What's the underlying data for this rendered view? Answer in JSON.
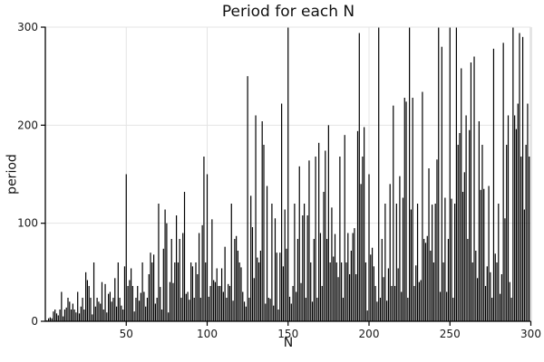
{
  "title": "Period for each N",
  "colors": {
    "bar": "#000000",
    "grid": "#e4e4e4",
    "spine": "#000000",
    "spine_light": "#e4e4e4",
    "text": "#191919",
    "background": "#ffffff"
  },
  "chart_data": {
    "type": "bar",
    "title": "Period for each N",
    "xlabel": "N",
    "ylabel": "period",
    "xlim": [
      0,
      300
    ],
    "ylim": [
      0,
      300
    ],
    "xticks": [
      50,
      100,
      150,
      200,
      250,
      300
    ],
    "yticks": [
      0,
      100,
      200,
      300
    ],
    "x_start": 1,
    "clip_at_ylim": true,
    "values": [
      1,
      3,
      4,
      3,
      10,
      12,
      8,
      6,
      12,
      30,
      5,
      12,
      14,
      24,
      20,
      12,
      18,
      12,
      9,
      30,
      8,
      15,
      24,
      12,
      50,
      42,
      36,
      24,
      7,
      60,
      15,
      24,
      20,
      18,
      40,
      12,
      38,
      9,
      28,
      30,
      20,
      24,
      44,
      15,
      60,
      24,
      16,
      12,
      56,
      150,
      36,
      42,
      54,
      36,
      10,
      24,
      36,
      21,
      29,
      60,
      30,
      15,
      24,
      48,
      70,
      60,
      68,
      18,
      24,
      120,
      35,
      12,
      74,
      114,
      100,
      9,
      40,
      84,
      39,
      60,
      108,
      60,
      84,
      24,
      90,
      132,
      28,
      30,
      22,
      60,
      56,
      24,
      60,
      48,
      90,
      24,
      98,
      168,
      60,
      150,
      25,
      36,
      104,
      42,
      40,
      54,
      36,
      36,
      54,
      30,
      76,
      24,
      38,
      36,
      120,
      21,
      84,
      87,
      72,
      60,
      55,
      30,
      20,
      15,
      250,
      24,
      128,
      96,
      44,
      210,
      65,
      60,
      72,
      204,
      180,
      18,
      138,
      24,
      23,
      120,
      16,
      105,
      70,
      12,
      70,
      222,
      56,
      114,
      74,
      300,
      25,
      18,
      36,
      120,
      30,
      84,
      158,
      39,
      108,
      120,
      24,
      108,
      164,
      60,
      20,
      84,
      168,
      24,
      182,
      90,
      36,
      132,
      174,
      84,
      200,
      60,
      116,
      66,
      89,
      60,
      45,
      168,
      60,
      24,
      190,
      60,
      90,
      48,
      72,
      90,
      95,
      48,
      194,
      294,
      140,
      168,
      198,
      60,
      11,
      150,
      68,
      75,
      56,
      36,
      20,
      312,
      24,
      84,
      45,
      120,
      21,
      54,
      140,
      36,
      220,
      36,
      120,
      54,
      148,
      30,
      126,
      228,
      224,
      24,
      300,
      114,
      228,
      36,
      57,
      120,
      40,
      42,
      234,
      84,
      80,
      87,
      156,
      72,
      119,
      60,
      120,
      165,
      324,
      30,
      280,
      60,
      126,
      30,
      84,
      750,
      125,
      24,
      120,
      384,
      180,
      192,
      258,
      132,
      152,
      210,
      84,
      195,
      264,
      60,
      270,
      72,
      44,
      204,
      134,
      180,
      135,
      36,
      56,
      138,
      50,
      24,
      278,
      69,
      60,
      120,
      28,
      48,
      284,
      105,
      180,
      210,
      40,
      24,
      306,
      210,
      196,
      222,
      294,
      168,
      290,
      114,
      180,
      222,
      168,
      300
    ]
  }
}
